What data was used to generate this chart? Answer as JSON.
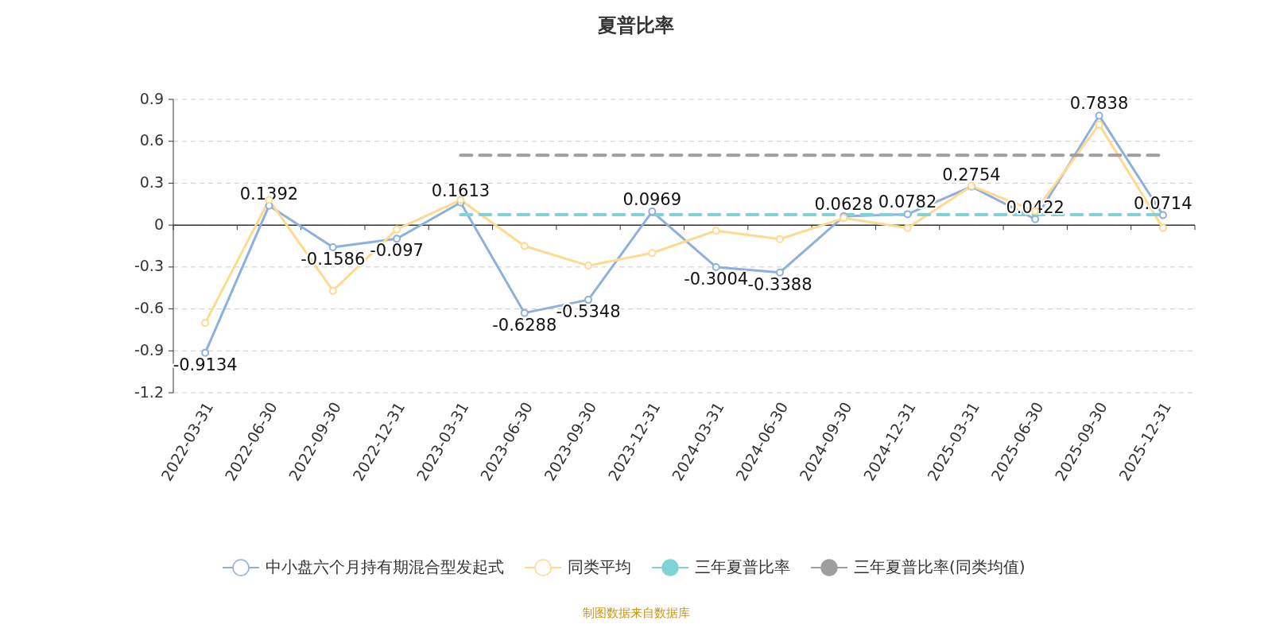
{
  "chart_data": {
    "type": "line",
    "title": "夏普比率",
    "categories": [
      "2022-03-31",
      "2022-06-30",
      "2022-09-30",
      "2022-12-31",
      "2023-03-31",
      "2023-06-30",
      "2023-09-30",
      "2023-12-31",
      "2024-03-31",
      "2024-06-30",
      "2024-09-30",
      "2024-12-31",
      "2025-03-31",
      "2025-06-30",
      "2025-09-30",
      "2025-12-31"
    ],
    "series": [
      {
        "name": "中小盘六个月持有期混合型发起式",
        "color": "#8eb0dc",
        "marker": "circle",
        "line_style": "solid",
        "data_labels": true,
        "values": [
          -0.9134,
          0.1392,
          -0.1586,
          -0.097,
          0.1613,
          -0.6288,
          -0.5348,
          0.0969,
          -0.3004,
          -0.3388,
          0.0628,
          0.0782,
          0.2754,
          0.0422,
          0.7838,
          0.0714
        ]
      },
      {
        "name": "同类平均",
        "color": "#ffd990",
        "marker": "circle",
        "line_style": "solid",
        "values": [
          -0.7,
          0.18,
          -0.47,
          -0.03,
          0.18,
          -0.15,
          -0.29,
          -0.2,
          -0.04,
          -0.1,
          0.05,
          -0.02,
          0.28,
          0.1,
          0.72,
          -0.02
        ]
      },
      {
        "name": "三年夏普比率",
        "color": "#7fd3d4",
        "marker": "none",
        "line_style": "dashed",
        "values": [
          null,
          null,
          null,
          null,
          0.075,
          0.075,
          0.075,
          0.075,
          0.075,
          0.075,
          0.075,
          0.075,
          0.075,
          0.075,
          0.075,
          0.075
        ]
      },
      {
        "name": "三年夏普比率(同类均值)",
        "color": "#9e9e9e",
        "marker": "none",
        "line_style": "dashed",
        "values": [
          null,
          null,
          null,
          null,
          0.5,
          0.5,
          0.5,
          0.5,
          0.5,
          0.5,
          0.5,
          0.5,
          0.5,
          0.5,
          0.5,
          0.5
        ]
      }
    ],
    "ylim": [
      -1.2,
      0.9
    ],
    "yticks": [
      -1.2,
      -0.9,
      -0.6,
      -0.3,
      0,
      0.3,
      0.6,
      0.9
    ],
    "grid": "y",
    "legend": "bottom",
    "annotations": [
      "制图数据来自数据库"
    ]
  }
}
